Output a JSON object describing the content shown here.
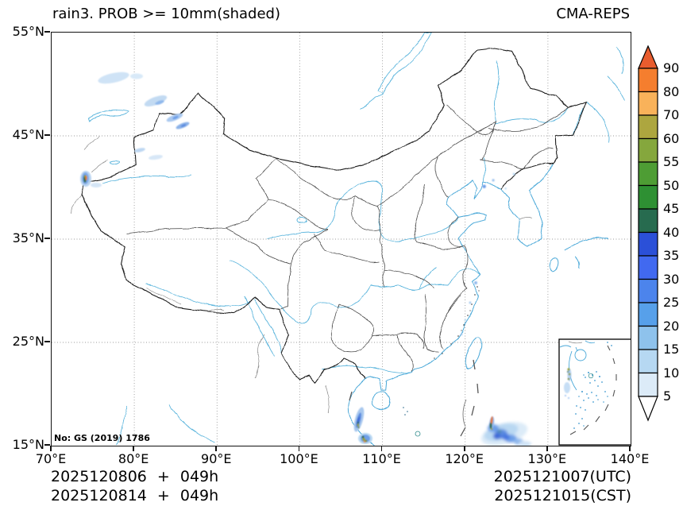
{
  "title": "rain3. PROB >= 10mm(shaded)",
  "model_label": "CMA-REPS",
  "watermark": "No: GS (2019) 1786",
  "axes": {
    "lat_ticks": [
      "55°N",
      "45°N",
      "35°N",
      "25°N",
      "15°N"
    ],
    "lon_ticks": [
      "70°E",
      "80°E",
      "90°E",
      "100°E",
      "110°E",
      "120°E",
      "130°E",
      "140°E"
    ],
    "lat_range": [
      15,
      55
    ],
    "lon_range": [
      70,
      140
    ]
  },
  "colorbar": {
    "levels": [
      "90",
      "80",
      "70",
      "60",
      "55",
      "50",
      "45",
      "40",
      "35",
      "30",
      "25",
      "20",
      "15",
      "10",
      "5"
    ],
    "segment_colors": [
      "#f57e2e",
      "#f9b25a",
      "#ada63f",
      "#85a73d",
      "#4e9d34",
      "#2e9033",
      "#276b4f",
      "#2b50d8",
      "#4169f0",
      "#4c84ec",
      "#57a0ea",
      "#8ec2ec",
      "#b6d8f2",
      "#dcebf8"
    ],
    "over_color": "#e85c2e",
    "under_color": "#ffffff"
  },
  "footer": {
    "run_utc": "2025120806 + 049h",
    "run_cst": "2025120814 + 049h",
    "valid_utc": "2025121007(UTC)",
    "valid_cst": "2025121015(CST)"
  },
  "map_colors": {
    "coastline": "#4aa8d8",
    "river": "#5ab4dc",
    "country_border": "#1a1a1a",
    "province_border": "#4a4a4a",
    "grid": "#9a9a9a",
    "precip_light": "#b6d8f2",
    "precip_mid": "#5c8ce0",
    "precip_high_orange": "#e0812f",
    "precip_teal": "#2a6b4e",
    "precip_olive": "#96a03a"
  }
}
